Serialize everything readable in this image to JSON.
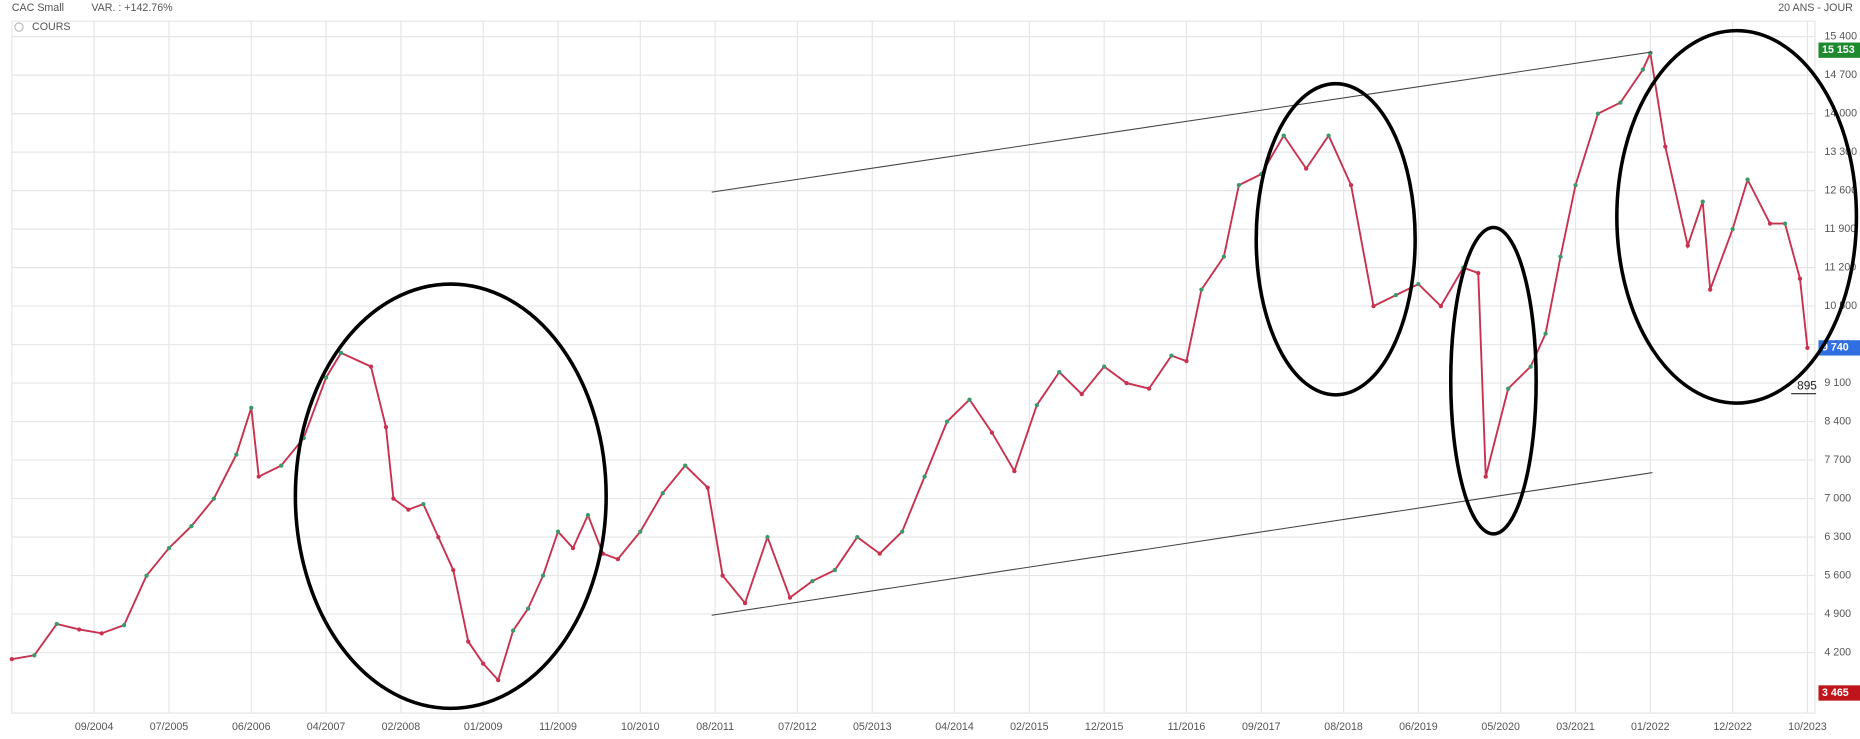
{
  "chart_data": {
    "type": "line",
    "title": "CAC Small",
    "subtitle": "VAR. : +142.76%",
    "period": "20 ANS - JOUR",
    "series": [
      {
        "name": "COURS",
        "color": "#c8324f",
        "up_color": "#3a9a6a",
        "down_color": "#c8324f",
        "x": [
          "10/2003",
          "01/2004",
          "04/2004",
          "07/2004",
          "10/2004",
          "01/2005",
          "04/2005",
          "07/2005",
          "10/2005",
          "01/2006",
          "04/2006",
          "06/2006",
          "07/2006",
          "10/2006",
          "01/2007",
          "04/2007",
          "06/2007",
          "10/2007",
          "12/2007",
          "01/2008",
          "03/2008",
          "05/2008",
          "07/2008",
          "09/2008",
          "11/2008",
          "01/2009",
          "03/2009",
          "05/2009",
          "07/2009",
          "09/2009",
          "11/2009",
          "01/2010",
          "03/2010",
          "05/2010",
          "07/2010",
          "10/2010",
          "01/2011",
          "04/2011",
          "07/2011",
          "09/2011",
          "12/2011",
          "03/2012",
          "06/2012",
          "09/2012",
          "12/2012",
          "03/2013",
          "06/2013",
          "09/2013",
          "12/2013",
          "03/2014",
          "06/2014",
          "09/2014",
          "12/2014",
          "03/2015",
          "06/2015",
          "09/2015",
          "12/2015",
          "03/2016",
          "06/2016",
          "09/2016",
          "11/2016",
          "01/2017",
          "04/2017",
          "06/2017",
          "09/2017",
          "12/2017",
          "03/2018",
          "06/2018",
          "09/2018",
          "12/2018",
          "03/2019",
          "06/2019",
          "09/2019",
          "12/2019",
          "02/2020",
          "03/2020",
          "06/2020",
          "09/2020",
          "11/2020",
          "01/2021",
          "03/2021",
          "06/2021",
          "09/2021",
          "12/2021",
          "01/2022",
          "03/2022",
          "06/2022",
          "08/2022",
          "09/2022",
          "12/2022",
          "02/2023",
          "05/2023",
          "07/2023",
          "09/2023",
          "10/2023"
        ],
        "values": [
          4080,
          4150,
          4720,
          4620,
          4550,
          4700,
          5600,
          6100,
          6500,
          7000,
          7800,
          8650,
          7400,
          7600,
          8100,
          9200,
          9650,
          9400,
          8300,
          7000,
          6800,
          6900,
          6300,
          5700,
          4400,
          4000,
          3700,
          4600,
          5000,
          5600,
          6400,
          6100,
          6700,
          6000,
          5900,
          6400,
          7100,
          7600,
          7200,
          5600,
          5100,
          6300,
          5200,
          5500,
          5700,
          6300,
          6000,
          6400,
          7400,
          8400,
          8800,
          8200,
          7500,
          8700,
          9300,
          8900,
          9400,
          9100,
          9000,
          9600,
          9500,
          10800,
          11400,
          12700,
          12900,
          13600,
          13000,
          13600,
          12700,
          10500,
          10700,
          10900,
          10500,
          11200,
          11100,
          7400,
          9000,
          9400,
          10000,
          11400,
          12700,
          14000,
          14200,
          14800,
          15100,
          13400,
          11600,
          12400,
          10800,
          11900,
          12800,
          12000,
          12000,
          11000,
          9740
        ]
      }
    ],
    "xlim": [
      "10/2003",
      "11/2023"
    ],
    "xticks": [
      "09/2004",
      "07/2005",
      "06/2006",
      "04/2007",
      "02/2008",
      "01/2009",
      "11/2009",
      "10/2010",
      "08/2011",
      "07/2012",
      "05/2013",
      "04/2014",
      "02/2015",
      "12/2015",
      "11/2016",
      "09/2017",
      "08/2018",
      "06/2019",
      "05/2020",
      "03/2021",
      "01/2022",
      "12/2022",
      "10/2023"
    ],
    "ylim": [
      3100,
      15680
    ],
    "yticks": [
      {
        "value": 4200,
        "label": "4 200"
      },
      {
        "value": 4900,
        "label": "4 900"
      },
      {
        "value": 5600,
        "label": "5 600"
      },
      {
        "value": 6300,
        "label": "6 300"
      },
      {
        "value": 7000,
        "label": "7 000"
      },
      {
        "value": 7700,
        "label": "7 700"
      },
      {
        "value": 8400,
        "label": "8 400"
      },
      {
        "value": 9100,
        "label": "9 100"
      },
      {
        "value": 9800,
        "label": "9 800"
      },
      {
        "value": 10500,
        "label": "10 500"
      },
      {
        "value": 11200,
        "label": "11 200"
      },
      {
        "value": 11900,
        "label": "11 900"
      },
      {
        "value": 12600,
        "label": "12 600"
      },
      {
        "value": 13300,
        "label": "13 300"
      },
      {
        "value": 14000,
        "label": "14 000"
      },
      {
        "value": 14700,
        "label": "14 700"
      },
      {
        "value": 15400,
        "label": "15 400"
      }
    ],
    "grid": true,
    "price_tags": [
      {
        "value": 15153,
        "label": "15 153",
        "color": "#1e8a2e"
      },
      {
        "value": 9740,
        "label": "9 740",
        "color": "#2f6fe0"
      },
      {
        "value": 3465,
        "label": "3 465",
        "color": "#c0141c"
      }
    ],
    "annotations": [
      "895"
    ]
  }
}
